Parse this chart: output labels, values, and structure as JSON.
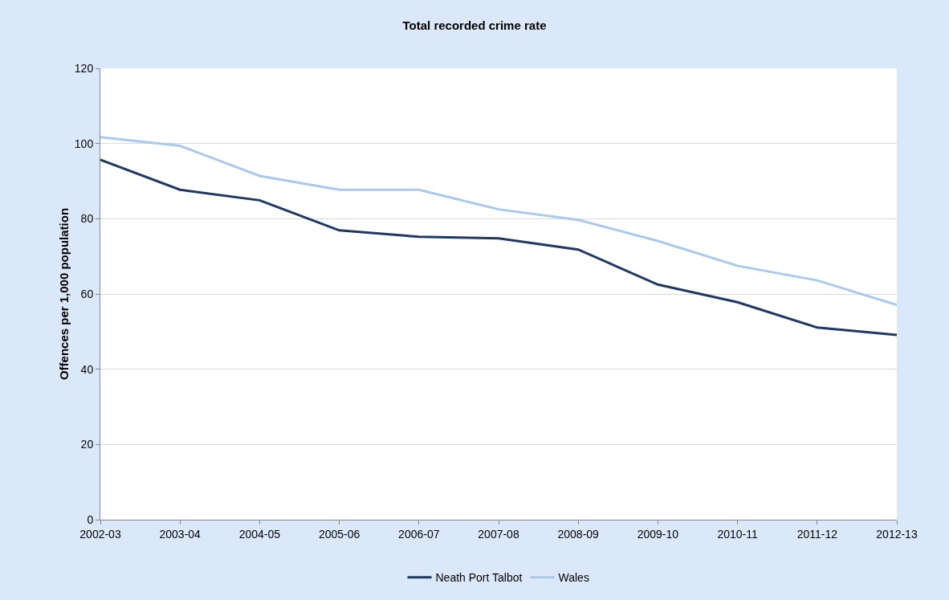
{
  "chart_data": {
    "type": "line",
    "title": "Total recorded crime rate",
    "ylabel": "Offences per 1,000 population",
    "categories": [
      "2002-03",
      "2003-04",
      "2004-05",
      "2005-06",
      "2006-07",
      "2007-08",
      "2008-09",
      "2009-10",
      "2010-11",
      "2011-12",
      "2012-13"
    ],
    "series": [
      {
        "name": "Neath Port Talbot",
        "color": "#1f3864",
        "values": [
          95.7,
          87.7,
          84.9,
          76.9,
          75.2,
          74.8,
          71.8,
          62.5,
          57.8,
          51.1,
          49.1
        ]
      },
      {
        "name": "Wales",
        "color": "#a9c9ef",
        "values": [
          101.7,
          99.4,
          91.4,
          87.7,
          87.7,
          82.5,
          79.7,
          74.1,
          67.5,
          63.6,
          57.1
        ]
      }
    ],
    "ylim": [
      0,
      120
    ],
    "yticks": [
      0,
      20,
      40,
      60,
      80,
      100,
      120
    ],
    "grid": "y",
    "legend": "bottom",
    "marker": "none",
    "line_style": "solid"
  }
}
